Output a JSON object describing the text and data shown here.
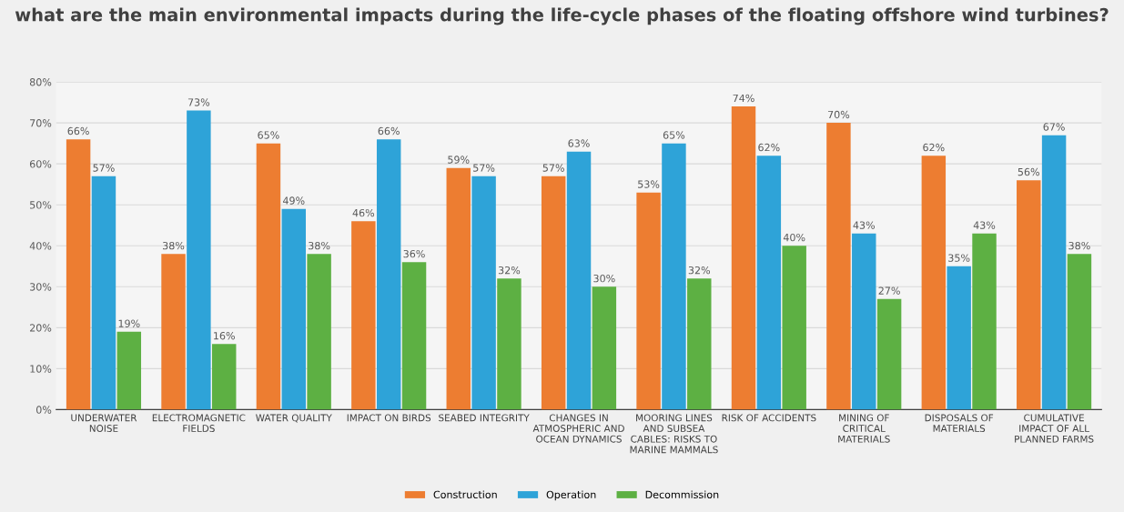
{
  "chart_data": {
    "type": "bar",
    "title": "what are the main environmental impacts during the life-cycle phases of the floating offshore wind turbines?",
    "categories": [
      "UNDERWATER\nNOISE",
      "ELECTROMAGNETIC\nFIELDS",
      "WATER QUALITY",
      "IMPACT ON BIRDS",
      "SEABED INTEGRITY",
      "CHANGES IN\nATMOSPHERIC AND\nOCEAN DYNAMICS",
      "MOORING LINES\nAND SUBSEA\nCABLES: RISKS TO\nMARINE MAMMALS",
      "RISK OF ACCIDENTS",
      "MINING OF\nCRITICAL\nMATERIALS",
      "DISPOSALS OF\nMATERIALS",
      "CUMULATIVE\nIMPACT OF ALL\nPLANNED FARMS"
    ],
    "series": [
      {
        "name": "Construction",
        "color": "#ed7d31",
        "values": [
          66,
          38,
          65,
          46,
          59,
          57,
          53,
          74,
          70,
          62,
          56
        ],
        "value_labels": [
          "66%",
          "38%",
          "65%",
          "46%",
          "59%",
          "57%",
          "53%",
          "74%",
          "70%",
          "62%",
          "56%"
        ]
      },
      {
        "name": "Operation",
        "color": "#2ea3d8",
        "values": [
          57,
          73,
          49,
          66,
          57,
          63,
          65,
          62,
          43,
          35,
          67
        ],
        "value_labels": [
          "57%",
          "73%",
          "49%",
          "66%",
          "57%",
          "63%",
          "65%",
          "62%",
          "43%",
          "35%",
          "67%"
        ]
      },
      {
        "name": "Decommission",
        "color": "#5db043",
        "values": [
          19,
          16,
          38,
          36,
          32,
          30,
          32,
          40,
          27,
          43,
          38
        ],
        "value_labels": [
          "19%",
          "16%",
          "38%",
          "36%",
          "32%",
          "30%",
          "32%",
          "40%",
          "27%",
          "43%",
          "38%"
        ]
      }
    ],
    "ylim": [
      0,
      80
    ],
    "yticks": [
      {
        "value": 0,
        "label": "0%"
      },
      {
        "value": 10,
        "label": "10%"
      },
      {
        "value": 20,
        "label": "20%"
      },
      {
        "value": 30,
        "label": "30%"
      },
      {
        "value": 40,
        "label": "40%"
      },
      {
        "value": 50,
        "label": "50%"
      },
      {
        "value": 60,
        "label": "60%"
      },
      {
        "value": 70,
        "label": "70%"
      },
      {
        "value": 80,
        "label": "80%"
      }
    ],
    "grid": "y",
    "legend": "bottom"
  }
}
